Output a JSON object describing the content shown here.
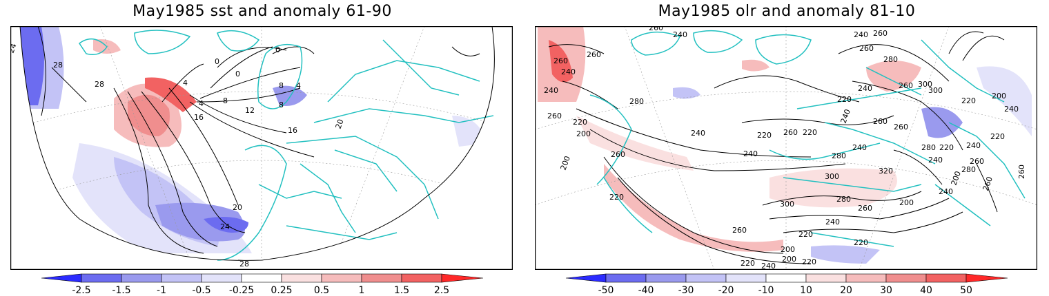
{
  "colors": {
    "coast": "#22c0c0",
    "contour": "#000000",
    "neg_2_5": "#2b2bff",
    "neg_1_5": "#6c6cf0",
    "neg_1": "#9a9aee",
    "neg_0_5": "#c3c3f6",
    "neg_0_25": "#e3e3fa",
    "pos_0_25": "#fae0e0",
    "pos_0_5": "#f6bcbc",
    "pos_1": "#f08e8e",
    "pos_1_5": "#f26262",
    "pos_2_5": "#ff2828"
  },
  "left_panel": {
    "title": "May1985 sst and anomaly 61-90",
    "colorbar_labels": [
      "-2.5",
      "-1.5",
      "-1",
      "-0.5",
      "-0.25",
      "0.25",
      "0.5",
      "1",
      "1.5",
      "2.5"
    ],
    "contour_labels": [
      "24",
      "28",
      "28",
      "0",
      "0",
      "0",
      "4",
      "4",
      "4",
      "8",
      "8",
      "8",
      "12",
      "16",
      "16",
      "20",
      "20",
      "24",
      "28"
    ]
  },
  "right_panel": {
    "title": "May1985 olr and anomaly 81-10",
    "colorbar_labels": [
      "-50",
      "-40",
      "-30",
      "-20",
      "-10",
      "10",
      "20",
      "30",
      "40",
      "50"
    ],
    "contour_labels": [
      "260",
      "240",
      "260",
      "240",
      "240",
      "260",
      "220",
      "280",
      "240",
      "220",
      "260",
      "200",
      "260",
      "200",
      "240",
      "220",
      "220",
      "260",
      "240",
      "280",
      "240",
      "260",
      "300",
      "300",
      "240",
      "260",
      "260",
      "280",
      "260",
      "240",
      "280",
      "260",
      "240",
      "320",
      "220",
      "240",
      "260",
      "220",
      "200",
      "300",
      "300",
      "280",
      "260",
      "240",
      "260",
      "220",
      "220",
      "200",
      "220",
      "200",
      "240",
      "220",
      "240",
      "200",
      "200",
      "220",
      "220",
      "240",
      "260",
      "260",
      "280"
    ]
  }
}
